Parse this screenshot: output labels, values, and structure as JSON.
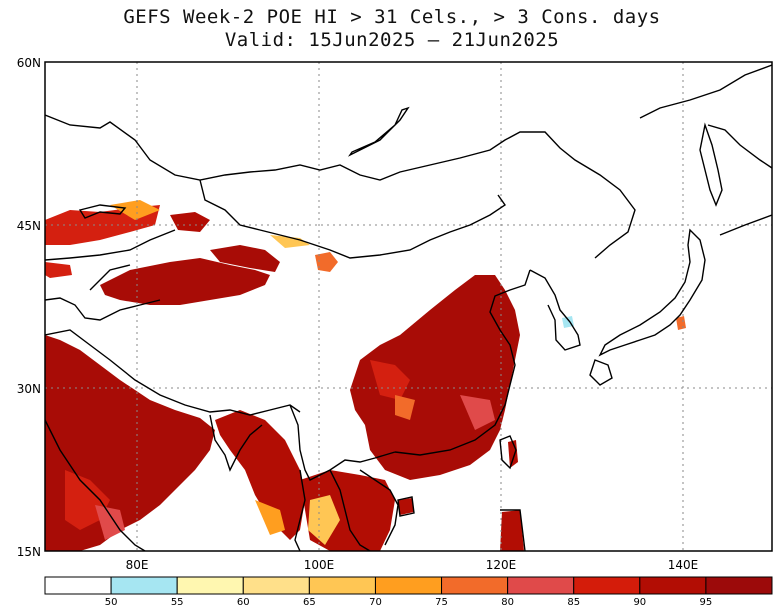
{
  "title": {
    "line1": "GEFS Week-2 POE HI > 31 Cels., > 3 Cons. days",
    "line2": "Valid: 15Jun2025 — 21Jun2025"
  },
  "axes": {
    "lat_labels": [
      "60N",
      "45N",
      "30N",
      "15N"
    ],
    "lon_labels": [
      "80E",
      "100E",
      "120E",
      "140E"
    ]
  },
  "colorbar": {
    "tick_labels": [
      "50",
      "55",
      "60",
      "65",
      "70",
      "75",
      "80",
      "85",
      "90",
      "95"
    ],
    "colors": [
      "#ffffff",
      "#a6e6f2",
      "#fff7b0",
      "#ffe08a",
      "#ffc654",
      "#ff9e1f",
      "#f26b2a",
      "#e04a4a",
      "#d41c0a",
      "#b20d04",
      "#9c0a0a"
    ]
  },
  "legend_colors": {
    "land_high": "#a80c06",
    "land_mid": "#d42010",
    "boundary": "#000000"
  }
}
